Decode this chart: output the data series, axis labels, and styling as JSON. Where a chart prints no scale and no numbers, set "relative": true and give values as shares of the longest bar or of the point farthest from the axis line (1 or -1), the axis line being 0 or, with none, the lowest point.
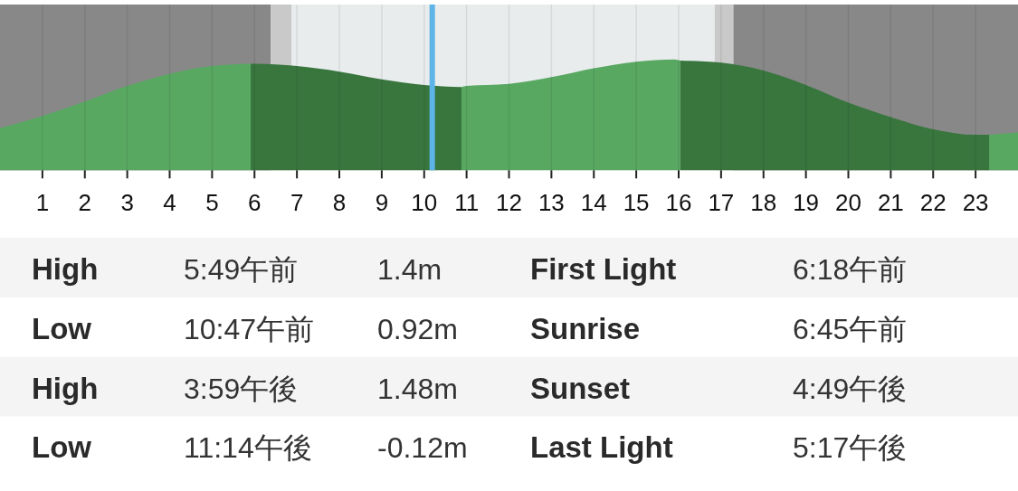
{
  "chart_data": [
    {
      "type": "area",
      "relative": true,
      "series": [
        {
          "color": "#58a862",
          "x": [
            0,
            1,
            2,
            3,
            4,
            5,
            5.91,
            8,
            10.88,
            11,
            12,
            13,
            14,
            15,
            15.9,
            16.04,
            20,
            23.32,
            24
          ],
          "values": [
            0.38,
            0.49,
            0.62,
            0.76,
            0.87,
            0.94,
            0.96,
            null,
            0.75,
            0.76,
            0.78,
            0.84,
            0.92,
            0.98,
            1,
            0.99,
            null,
            0.32,
            0.34
          ]
        },
        {
          "color": "#38763e",
          "x": [
            5.91,
            6,
            7,
            8,
            9,
            10,
            10.88,
            13,
            16.04,
            17,
            18,
            19,
            20,
            21,
            22,
            23,
            23.32
          ],
          "values": [
            0.96,
            0.96,
            0.94,
            0.89,
            0.82,
            0.77,
            0.75,
            null,
            0.99,
            0.97,
            0.9,
            0.77,
            0.61,
            0.48,
            0.37,
            0.32,
            0.32
          ]
        }
      ],
      "xlim": [
        0,
        24
      ],
      "xticks": [
        1,
        2,
        3,
        4,
        5,
        6,
        7,
        8,
        9,
        10,
        11,
        12,
        13,
        14,
        15,
        16,
        17,
        18,
        19,
        20,
        21,
        22,
        23
      ],
      "grid": "x",
      "bands": [
        {
          "axis": "x",
          "from": 0,
          "to": 6.38,
          "color": "#888888"
        },
        {
          "axis": "x",
          "from": 6.38,
          "to": 6.88,
          "color": "#c9c9c9"
        },
        {
          "axis": "x",
          "from": 6.88,
          "to": 16.85,
          "color": "#e9eced"
        },
        {
          "axis": "x",
          "from": 16.85,
          "to": 17.29,
          "color": "#c9c9c9"
        },
        {
          "axis": "x",
          "from": 17.29,
          "to": 24,
          "color": "#888888"
        }
      ],
      "ref_lines": [
        {
          "axis": "x",
          "value": 10.19,
          "color": "#5db4e6"
        }
      ]
    },
    {
      "type": "other",
      "annotations": [
        "High",
        "5:49午前",
        "1.4m",
        "First Light",
        "6:18午前",
        "Low",
        "10:47午前",
        "0.92m",
        "Sunrise",
        "6:45午前",
        "High",
        "3:59午後",
        "1.48m",
        "Sunset",
        "4:49午後",
        "Low",
        "11:14午後",
        "-0.12m",
        "Last Light",
        "5:17午後"
      ]
    }
  ]
}
